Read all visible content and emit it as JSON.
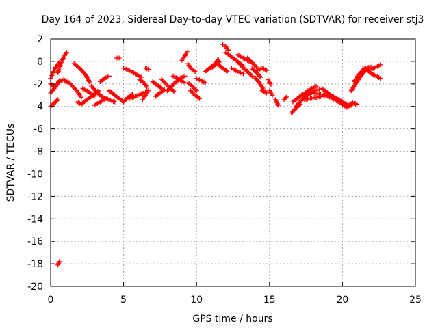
{
  "chart_data": {
    "type": "scatter",
    "title": "Day 164 of 2023, Sidereal Day-to-day VTEC variation (SDTVAR) for receiver stj3",
    "xlabel": "GPS time / hours",
    "ylabel": "SDTVAR / TECUs",
    "xlim": [
      0,
      25
    ],
    "ylim": [
      -20,
      2
    ],
    "grid": true,
    "marker": "+",
    "color": "#ff0000",
    "x_ticks": [
      0,
      5,
      10,
      15,
      20,
      25
    ],
    "y_ticks": [
      2,
      0,
      -2,
      -4,
      -6,
      -8,
      -10,
      -12,
      -14,
      -16,
      -18,
      -20
    ],
    "series": [
      {
        "name": "stj3",
        "tracks": [
          {
            "x": [
              0.0,
              0.3,
              0.6,
              0.9,
              1.2
            ],
            "y": [
              -2.0,
              -2.3,
              -1.8,
              -1.6,
              -1.9
            ]
          },
          {
            "x": [
              0.0,
              0.2,
              0.4,
              0.6
            ],
            "y": [
              -1.5,
              -0.9,
              -0.4,
              -0.1
            ]
          },
          {
            "x": [
              0.0,
              0.3,
              0.6
            ],
            "y": [
              -2.8,
              -2.3,
              -1.7
            ]
          },
          {
            "x": [
              0.0,
              0.25,
              0.5
            ],
            "y": [
              -4.0,
              -3.7,
              -3.4
            ]
          },
          {
            "x": [
              0.5,
              0.7,
              0.9,
              1.1
            ],
            "y": [
              -1.0,
              -0.2,
              0.4,
              0.8
            ]
          },
          {
            "x": [
              0.5,
              0.6
            ],
            "y": [
              -18.1,
              -17.8
            ]
          },
          {
            "x": [
              1.2,
              1.5,
              1.8,
              2.1
            ],
            "y": [
              -1.8,
              -2.2,
              -2.6,
              -3.2
            ]
          },
          {
            "x": [
              1.6,
              2.0,
              2.4,
              2.7
            ],
            "y": [
              -0.2,
              -0.6,
              -1.2,
              -1.9
            ]
          },
          {
            "x": [
              1.8,
              2.1,
              2.4,
              2.7,
              3.0,
              3.3
            ],
            "y": [
              -3.6,
              -3.8,
              -3.5,
              -3.2,
              -2.9,
              -2.6
            ]
          },
          {
            "x": [
              2.2,
              2.6,
              3.0
            ],
            "y": [
              -2.4,
              -2.7,
              -3.1
            ]
          },
          {
            "x": [
              2.8,
              3.2,
              3.6,
              4.0,
              4.4
            ],
            "y": [
              -2.2,
              -2.8,
              -3.2,
              -3.4,
              -3.6
            ]
          },
          {
            "x": [
              3.0,
              3.4,
              3.8,
              4.2
            ],
            "y": [
              -3.9,
              -3.6,
              -3.3,
              -3.5
            ]
          },
          {
            "x": [
              3.4,
              3.7,
              4.0
            ],
            "y": [
              -1.8,
              -1.5,
              -1.3
            ]
          },
          {
            "x": [
              4.0,
              4.3,
              4.6,
              4.9
            ],
            "y": [
              -2.6,
              -2.9,
              -3.2,
              -3.5
            ]
          },
          {
            "x": [
              4.5,
              4.7
            ],
            "y": [
              0.3,
              0.3
            ]
          },
          {
            "x": [
              5.0,
              5.3,
              5.6
            ],
            "y": [
              -3.6,
              -3.2,
              -2.9
            ]
          },
          {
            "x": [
              5.0,
              5.4,
              5.8,
              6.2
            ],
            "y": [
              -0.6,
              -0.8,
              -1.1,
              -1.4
            ]
          },
          {
            "x": [
              5.4,
              5.8,
              6.2,
              6.5
            ],
            "y": [
              -3.3,
              -3.1,
              -2.9,
              -2.7
            ]
          },
          {
            "x": [
              6.1,
              6.4,
              6.6
            ],
            "y": [
              -1.6,
              -1.9,
              -2.3
            ]
          },
          {
            "x": [
              6.3,
              6.5,
              6.7
            ],
            "y": [
              -3.4,
              -3.0,
              -2.6
            ]
          },
          {
            "x": [
              6.5,
              6.7
            ],
            "y": [
              -0.6,
              -0.7
            ]
          },
          {
            "x": [
              7.0,
              7.3,
              7.6
            ],
            "y": [
              -1.8,
              -2.1,
              -2.4
            ]
          },
          {
            "x": [
              7.2,
              7.5,
              7.8
            ],
            "y": [
              -3.1,
              -2.8,
              -2.5
            ]
          },
          {
            "x": [
              7.6,
              7.9,
              8.2,
              8.5
            ],
            "y": [
              -1.6,
              -2.0,
              -2.4,
              -2.7
            ]
          },
          {
            "x": [
              8.0,
              8.3,
              8.6,
              8.9,
              9.2
            ],
            "y": [
              -2.6,
              -2.2,
              -1.8,
              -1.5,
              -1.3
            ]
          },
          {
            "x": [
              8.4,
              8.8,
              9.2
            ],
            "y": [
              -1.3,
              -1.6,
              -1.9
            ]
          },
          {
            "x": [
              9.0,
              9.2,
              9.4
            ],
            "y": [
              0.1,
              0.5,
              0.9
            ]
          },
          {
            "x": [
              9.4,
              9.6,
              9.9
            ],
            "y": [
              -0.2,
              -0.6,
              -0.9
            ]
          },
          {
            "x": [
              9.4,
              9.7,
              10.0
            ],
            "y": [
              -1.9,
              -2.2,
              -2.6
            ]
          },
          {
            "x": [
              9.6,
              9.9,
              10.2
            ],
            "y": [
              -2.6,
              -3.0,
              -3.3
            ]
          },
          {
            "x": [
              10.0,
              10.3,
              10.6
            ],
            "y": [
              -1.5,
              -1.7,
              -1.9
            ]
          },
          {
            "x": [
              10.6,
              10.9,
              11.2,
              11.5
            ],
            "y": [
              -0.9,
              -0.6,
              -0.3,
              0.2
            ]
          },
          {
            "x": [
              11.0,
              11.3,
              11.6
            ],
            "y": [
              -0.6,
              -0.3,
              0.0
            ]
          },
          {
            "x": [
              11.5,
              11.8,
              12.1
            ],
            "y": [
              -0.3,
              -0.6,
              -0.9
            ]
          },
          {
            "x": [
              11.8,
              12.0,
              12.2
            ],
            "y": [
              1.5,
              1.3,
              1.0
            ]
          },
          {
            "x": [
              12.0,
              12.4,
              12.8,
              13.2
            ],
            "y": [
              0.8,
              0.4,
              0.0,
              -0.4
            ]
          },
          {
            "x": [
              12.4,
              12.8,
              13.2
            ],
            "y": [
              -0.6,
              -0.9,
              -1.1
            ]
          },
          {
            "x": [
              12.8,
              13.2,
              13.6
            ],
            "y": [
              0.6,
              0.3,
              0.0
            ]
          },
          {
            "x": [
              13.0,
              13.4,
              13.8
            ],
            "y": [
              -0.3,
              -0.8,
              -1.3
            ]
          },
          {
            "x": [
              13.5,
              13.8,
              14.1
            ],
            "y": [
              0.3,
              -0.1,
              -0.5
            ]
          },
          {
            "x": [
              13.8,
              14.1,
              14.4
            ],
            "y": [
              -0.6,
              -1.0,
              -1.4
            ]
          },
          {
            "x": [
              14.0,
              14.3,
              14.6
            ],
            "y": [
              -1.4,
              -1.9,
              -2.5
            ]
          },
          {
            "x": [
              14.2,
              14.5,
              14.8
            ],
            "y": [
              -0.8,
              -0.6,
              -0.8
            ]
          },
          {
            "x": [
              14.5,
              14.8
            ],
            "y": [
              -2.6,
              -2.8
            ]
          },
          {
            "x": [
              14.9,
              15.1
            ],
            "y": [
              -1.6,
              -2.1
            ]
          },
          {
            "x": [
              15.0,
              15.2
            ],
            "y": [
              -2.6,
              -3.0
            ]
          },
          {
            "x": [
              15.4,
              15.6
            ],
            "y": [
              -3.4,
              -3.9
            ]
          },
          {
            "x": [
              16.0,
              16.2
            ],
            "y": [
              -3.4,
              -3.1
            ]
          },
          {
            "x": [
              16.5,
              16.8,
              17.1
            ],
            "y": [
              -4.6,
              -4.2,
              -3.8
            ]
          },
          {
            "x": [
              16.6,
              16.9,
              17.2,
              17.5,
              17.8
            ],
            "y": [
              -3.6,
              -3.3,
              -3.0,
              -2.8,
              -2.7
            ]
          },
          {
            "x": [
              16.8,
              17.1,
              17.4,
              17.7,
              18.0
            ],
            "y": [
              -4.0,
              -3.6,
              -3.2,
              -2.9,
              -2.7
            ]
          },
          {
            "x": [
              17.2,
              17.6,
              18.0,
              18.4
            ],
            "y": [
              -3.0,
              -2.8,
              -2.6,
              -2.5
            ]
          },
          {
            "x": [
              17.4,
              17.8,
              18.2,
              18.6
            ],
            "y": [
              -3.4,
              -3.3,
              -3.2,
              -3.1
            ]
          },
          {
            "x": [
              17.6,
              17.9,
              18.2
            ],
            "y": [
              -2.6,
              -2.4,
              -2.2
            ]
          },
          {
            "x": [
              18.0,
              18.4,
              18.8,
              19.2
            ],
            "y": [
              -2.8,
              -2.9,
              -3.0,
              -3.2
            ]
          },
          {
            "x": [
              18.6,
              18.9,
              19.2,
              19.5
            ],
            "y": [
              -2.4,
              -2.7,
              -3.0,
              -3.3
            ]
          },
          {
            "x": [
              18.8,
              19.2,
              19.6,
              20.0
            ],
            "y": [
              -3.0,
              -3.2,
              -3.5,
              -3.8
            ]
          },
          {
            "x": [
              19.2,
              19.6,
              20.0,
              20.4
            ],
            "y": [
              -3.0,
              -3.3,
              -3.7,
              -4.0
            ]
          },
          {
            "x": [
              19.6,
              20.0,
              20.4
            ],
            "y": [
              -3.3,
              -3.6,
              -3.9
            ]
          },
          {
            "x": [
              20.0,
              20.3,
              20.6
            ],
            "y": [
              -3.8,
              -4.1,
              -3.9
            ]
          },
          {
            "x": [
              20.4,
              20.7,
              21.0
            ],
            "y": [
              -3.9,
              -3.7,
              -3.8
            ]
          },
          {
            "x": [
              20.6,
              20.9,
              21.2,
              21.5
            ],
            "y": [
              -2.6,
              -2.0,
              -1.4,
              -0.9
            ]
          },
          {
            "x": [
              20.8,
              21.1,
              21.4,
              21.7,
              22.0
            ],
            "y": [
              -1.8,
              -1.2,
              -0.8,
              -0.6,
              -0.5
            ]
          },
          {
            "x": [
              21.0,
              21.3,
              21.6,
              21.9
            ],
            "y": [
              -1.4,
              -1.0,
              -0.6,
              -0.5
            ]
          },
          {
            "x": [
              21.4,
              21.7,
              22.0,
              22.3,
              22.6
            ],
            "y": [
              -0.6,
              -0.8,
              -1.1,
              -1.3,
              -1.5
            ]
          },
          {
            "x": [
              22.0,
              22.3,
              22.6
            ],
            "y": [
              -0.7,
              -0.5,
              -0.3
            ]
          }
        ]
      }
    ]
  }
}
